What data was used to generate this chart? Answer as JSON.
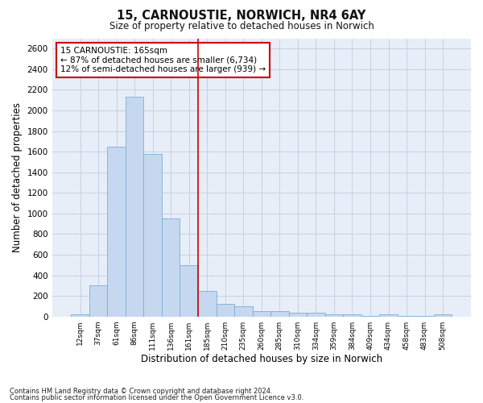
{
  "title": "15, CARNOUSTIE, NORWICH, NR4 6AY",
  "subtitle": "Size of property relative to detached houses in Norwich",
  "xlabel": "Distribution of detached houses by size in Norwich",
  "ylabel": "Number of detached properties",
  "footnote1": "Contains HM Land Registry data © Crown copyright and database right 2024.",
  "footnote2": "Contains public sector information licensed under the Open Government Licence v3.0.",
  "annotation_line1": "15 CARNOUSTIE: 165sqm",
  "annotation_line2": "← 87% of detached houses are smaller (6,734)",
  "annotation_line3": "12% of semi-detached houses are larger (939) →",
  "bar_color": "#c5d8f0",
  "bar_edge_color": "#7aafd4",
  "vline_color": "#cc0000",
  "annotation_box_edge": "#cc0000",
  "annotation_box_bg": "#ffffff",
  "categories": [
    "12sqm",
    "37sqm",
    "61sqm",
    "86sqm",
    "111sqm",
    "136sqm",
    "161sqm",
    "185sqm",
    "210sqm",
    "235sqm",
    "260sqm",
    "285sqm",
    "310sqm",
    "334sqm",
    "359sqm",
    "384sqm",
    "409sqm",
    "434sqm",
    "458sqm",
    "483sqm",
    "508sqm"
  ],
  "values": [
    25,
    300,
    1650,
    2130,
    1580,
    955,
    500,
    250,
    125,
    100,
    50,
    50,
    38,
    35,
    22,
    22,
    8,
    22,
    5,
    5,
    25
  ],
  "ylim": [
    0,
    2700
  ],
  "yticks": [
    0,
    200,
    400,
    600,
    800,
    1000,
    1200,
    1400,
    1600,
    1800,
    2000,
    2200,
    2400,
    2600
  ],
  "vline_x": 6.5,
  "bg_color": "#e8eef8",
  "grid_color": "#c0cce0",
  "fig_bg": "#ffffff"
}
